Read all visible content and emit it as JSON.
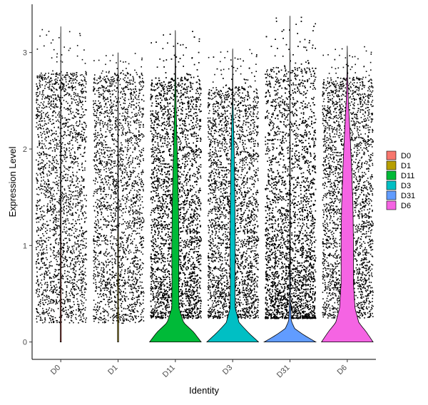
{
  "chart_data": {
    "type": "violin",
    "title": "",
    "xlabel": "Identity",
    "ylabel": "Expression Level",
    "ylim": [
      -0.18,
      3.5
    ],
    "yticks": [
      0,
      1,
      2,
      3
    ],
    "grid": false,
    "legend_position": "right",
    "categories": [
      "D0",
      "D1",
      "D11",
      "D3",
      "D31",
      "D6"
    ],
    "series": [
      {
        "name": "D0",
        "color": "#F8766D",
        "max": 3.27,
        "points": 2200,
        "violin_profile": [
          [
            0.0,
            0.02
          ],
          [
            3.27,
            0.0
          ]
        ]
      },
      {
        "name": "D1",
        "color": "#B79F00",
        "max": 3.0,
        "points": 2200,
        "violin_profile": [
          [
            0.0,
            0.02
          ],
          [
            3.0,
            0.0
          ]
        ]
      },
      {
        "name": "D11",
        "color": "#00BA38",
        "max": 3.23,
        "points": 5500,
        "violin_profile": [
          [
            0.0,
            1.0
          ],
          [
            0.1,
            0.72
          ],
          [
            0.2,
            0.32
          ],
          [
            0.35,
            0.14
          ],
          [
            0.6,
            0.13
          ],
          [
            1.0,
            0.14
          ],
          [
            1.4,
            0.12
          ],
          [
            1.8,
            0.09
          ],
          [
            2.2,
            0.05
          ],
          [
            2.5,
            0.025
          ],
          [
            2.8,
            0.01
          ],
          [
            3.23,
            0.0
          ]
        ]
      },
      {
        "name": "D3",
        "color": "#00BFC4",
        "max": 3.04,
        "points": 3200,
        "violin_profile": [
          [
            0.0,
            1.0
          ],
          [
            0.1,
            0.6
          ],
          [
            0.2,
            0.25
          ],
          [
            0.35,
            0.1
          ],
          [
            0.6,
            0.09
          ],
          [
            1.0,
            0.1
          ],
          [
            1.4,
            0.09
          ],
          [
            1.8,
            0.07
          ],
          [
            2.2,
            0.04
          ],
          [
            2.5,
            0.01
          ],
          [
            3.04,
            0.0
          ]
        ]
      },
      {
        "name": "D31",
        "color": "#619CFF",
        "max": 3.38,
        "points": 5200,
        "violin_profile": [
          [
            0.0,
            1.0
          ],
          [
            0.07,
            0.55
          ],
          [
            0.14,
            0.18
          ],
          [
            0.22,
            0.05
          ],
          [
            0.4,
            0.015
          ],
          [
            1.0,
            0.01
          ],
          [
            2.0,
            0.005
          ],
          [
            3.38,
            0.0
          ]
        ]
      },
      {
        "name": "D6",
        "color": "#F564E3",
        "max": 3.07,
        "points": 2700,
        "violin_profile": [
          [
            0.0,
            1.0
          ],
          [
            0.1,
            0.75
          ],
          [
            0.2,
            0.45
          ],
          [
            0.35,
            0.3
          ],
          [
            0.6,
            0.24
          ],
          [
            1.0,
            0.24
          ],
          [
            1.4,
            0.22
          ],
          [
            1.8,
            0.17
          ],
          [
            2.2,
            0.1
          ],
          [
            2.5,
            0.04
          ],
          [
            2.8,
            0.01
          ],
          [
            3.07,
            0.0
          ]
        ]
      }
    ]
  }
}
